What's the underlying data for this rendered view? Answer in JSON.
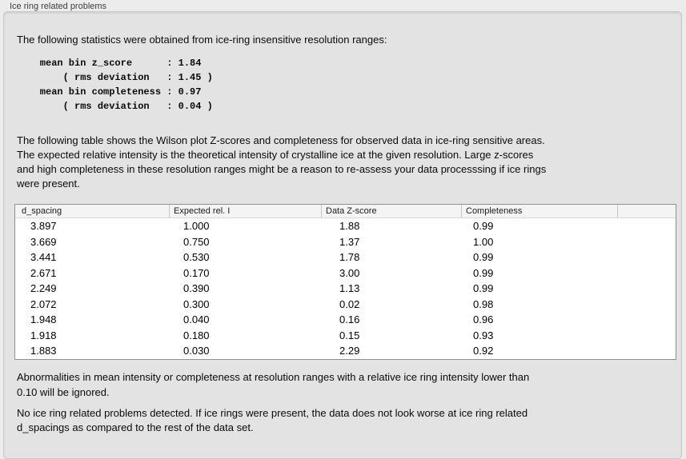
{
  "panel": {
    "title": "Ice ring related problems"
  },
  "intro": "The following statistics were obtained from ice-ring insensitive resolution ranges:",
  "stats_block": "    mean bin z_score      : 1.84\n        ( rms deviation   : 1.45 )\n    mean bin completeness : 0.97\n        ( rms deviation   : 0.04 )",
  "description": "The following table shows the Wilson plot Z-scores and completeness for observed data in ice-ring sensitive areas.\nThe expected relative intensity is the theoretical intensity of crystalline ice at the given resolution. Large z-scores\nand high completeness in these resolution ranges might be a reason to re-assess your data processsing if ice rings\nwere present.",
  "table": {
    "columns": [
      "d_spacing",
      "Expected rel. I",
      "Data Z-score",
      "Completeness",
      ""
    ],
    "rows": [
      [
        "3.897",
        "1.000",
        "1.88",
        "0.99"
      ],
      [
        "3.669",
        "0.750",
        "1.37",
        "1.00"
      ],
      [
        "3.441",
        "0.530",
        "1.78",
        "0.99"
      ],
      [
        "2.671",
        "0.170",
        "3.00",
        "0.99"
      ],
      [
        "2.249",
        "0.390",
        "1.13",
        "0.99"
      ],
      [
        "2.072",
        "0.300",
        "0.02",
        "0.98"
      ],
      [
        "1.948",
        "0.040",
        "0.16",
        "0.96"
      ],
      [
        "1.918",
        "0.180",
        "0.15",
        "0.93"
      ],
      [
        "1.883",
        "0.030",
        "2.29",
        "0.92"
      ]
    ]
  },
  "note_ignore": "Abnormalities in mean intensity or completeness at resolution ranges with a relative ice ring intensity lower than\n0.10 will be ignored.",
  "conclusion": "No ice ring related problems detected. If ice rings were present, the data does not look worse at ice ring related\nd_spacings as compared to the rest of the data set."
}
